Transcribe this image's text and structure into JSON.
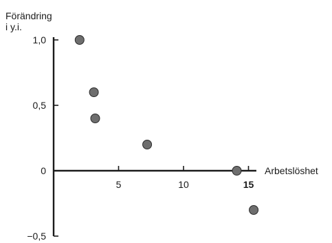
{
  "chart_data": {
    "type": "scatter",
    "title": "",
    "ylabel_lines": [
      "Förändring",
      "i y.i."
    ],
    "xlabel": "Arbetslöshet",
    "xlim": [
      0,
      15.5
    ],
    "ylim": [
      -0.5,
      1.0
    ],
    "x_ticks": [
      5,
      10,
      15
    ],
    "x_tick_labels": [
      "5",
      "10",
      "15"
    ],
    "y_ticks": [
      -0.5,
      0,
      0.5,
      1.0
    ],
    "y_tick_labels": [
      "−0,5",
      "0",
      "0,5",
      "1,0"
    ],
    "grid": false,
    "point_color": "#6e6e6e",
    "points": [
      {
        "x": 2.0,
        "y": 1.0
      },
      {
        "x": 3.1,
        "y": 0.6
      },
      {
        "x": 3.2,
        "y": 0.4
      },
      {
        "x": 7.2,
        "y": 0.2
      },
      {
        "x": 14.1,
        "y": 0.0
      },
      {
        "x": 15.4,
        "y": -0.3
      }
    ]
  }
}
